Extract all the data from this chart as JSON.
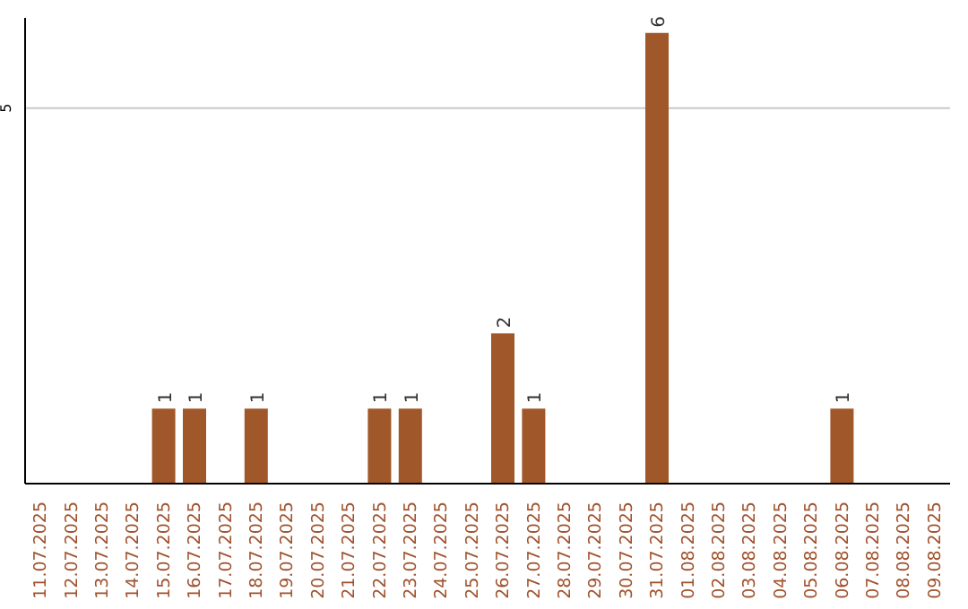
{
  "chart_data": {
    "type": "bar",
    "categories": [
      "11.07.2025",
      "12.07.2025",
      "13.07.2025",
      "14.07.2025",
      "15.07.2025",
      "16.07.2025",
      "17.07.2025",
      "18.07.2025",
      "19.07.2025",
      "20.07.2025",
      "21.07.2025",
      "22.07.2025",
      "23.07.2025",
      "24.07.2025",
      "25.07.2025",
      "26.07.2025",
      "27.07.2025",
      "28.07.2025",
      "29.07.2025",
      "30.07.2025",
      "31.07.2025",
      "01.08.2025",
      "02.08.2025",
      "03.08.2025",
      "04.08.2025",
      "05.08.2025",
      "06.08.2025",
      "07.08.2025",
      "08.08.2025",
      "09.08.2025"
    ],
    "values": [
      0,
      0,
      0,
      0,
      1,
      1,
      0,
      1,
      0,
      0,
      0,
      1,
      1,
      0,
      0,
      2,
      1,
      0,
      0,
      0,
      6,
      0,
      0,
      0,
      0,
      0,
      1,
      0,
      0,
      0
    ],
    "value_labels": [
      null,
      null,
      null,
      null,
      "1",
      "1",
      null,
      "1",
      null,
      null,
      null,
      "1",
      "1",
      null,
      null,
      "2",
      "1",
      null,
      null,
      null,
      "6",
      null,
      null,
      null,
      null,
      null,
      "1",
      null,
      null,
      null
    ],
    "color": "#a0582a",
    "ylim": [
      0,
      6.2
    ],
    "yticks": [
      5
    ],
    "grid": "y"
  }
}
